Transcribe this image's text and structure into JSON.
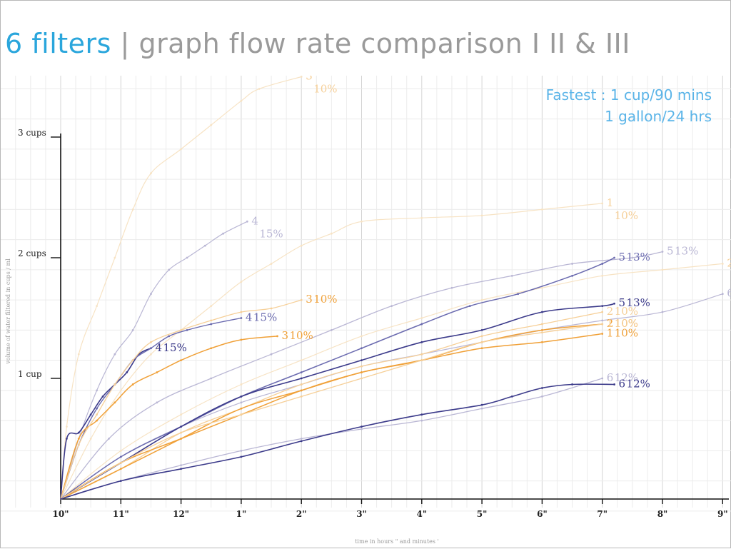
{
  "title": {
    "lead": "6 filters",
    "sep": "|",
    "rest": "graph flow rate comparison I II & III"
  },
  "annotation": {
    "line1": "Fastest : 1 cup/90 mins",
    "line2": "1 gallon/24 hrs"
  },
  "colors": {
    "dark_blue": "#3b3a8a",
    "blue": "#6a6aaf",
    "lavender": "#b9b6d4",
    "orange": "#f0a037",
    "peach": "#f6cf97",
    "pale": "#f7e3c4",
    "grid": "#dedede"
  },
  "chart_data": {
    "type": "line",
    "xlabel": "time in hours \" and minutes '",
    "ylabel": "volume of water filtered in cups / ml",
    "x_ticks": [
      {
        "h": 0,
        "label": "10\""
      },
      {
        "h": 1,
        "label": "11\""
      },
      {
        "h": 2,
        "label": "12\""
      },
      {
        "h": 3,
        "label": "1\""
      },
      {
        "h": 4,
        "label": "2\""
      },
      {
        "h": 5,
        "label": "3\""
      },
      {
        "h": 6,
        "label": "4\""
      },
      {
        "h": 7,
        "label": "5\""
      },
      {
        "h": 8,
        "label": "6\""
      },
      {
        "h": 9,
        "label": "7\""
      },
      {
        "h": 10,
        "label": "8\""
      },
      {
        "h": 11,
        "label": "9\""
      }
    ],
    "y_ticks": [
      {
        "v": 1,
        "label": "1 cup"
      },
      {
        "v": 2,
        "label": "2 cups"
      },
      {
        "v": 3,
        "label": "3 cups"
      }
    ],
    "xlim": [
      0,
      11.2
    ],
    "ylim": [
      0,
      3.5
    ],
    "grid": true,
    "series": [
      {
        "color": "pale",
        "width": 1.2,
        "points": [
          [
            0,
            0
          ],
          [
            0.1,
            0.6
          ],
          [
            0.3,
            1.2
          ],
          [
            0.6,
            1.6
          ],
          [
            0.9,
            2.0
          ],
          [
            1.2,
            2.4
          ],
          [
            1.5,
            2.7
          ],
          [
            2.0,
            2.9
          ],
          [
            2.5,
            3.1
          ],
          [
            3.0,
            3.3
          ],
          [
            3.3,
            3.4
          ],
          [
            4.0,
            3.5
          ]
        ],
        "label": [
          "3",
          "10%"
        ],
        "lc": "peach"
      },
      {
        "color": "lavender",
        "width": 1.2,
        "points": [
          [
            0,
            0
          ],
          [
            0.3,
            0.5
          ],
          [
            0.6,
            0.9
          ],
          [
            0.9,
            1.2
          ],
          [
            1.2,
            1.4
          ],
          [
            1.5,
            1.7
          ],
          [
            1.8,
            1.9
          ],
          [
            2.1,
            2.0
          ],
          [
            2.4,
            2.1
          ],
          [
            2.7,
            2.2
          ],
          [
            3.1,
            2.3
          ]
        ],
        "label": [
          "4",
          "15%"
        ],
        "lc": "lavender"
      },
      {
        "color": "pale",
        "width": 1.2,
        "points": [
          [
            0,
            0
          ],
          [
            0.5,
            0.5
          ],
          [
            1.0,
            0.9
          ],
          [
            1.5,
            1.2
          ],
          [
            2.0,
            1.4
          ],
          [
            2.5,
            1.6
          ],
          [
            3.0,
            1.8
          ],
          [
            3.5,
            1.95
          ],
          [
            4.0,
            2.1
          ],
          [
            4.5,
            2.2
          ],
          [
            5.0,
            2.3
          ],
          [
            6.0,
            2.33
          ],
          [
            7.0,
            2.35
          ],
          [
            8.0,
            2.4
          ],
          [
            9.0,
            2.45
          ]
        ],
        "label": [
          "1",
          "10%"
        ],
        "lc": "peach"
      },
      {
        "color": "lavender",
        "width": 1.3,
        "points": [
          [
            0,
            0
          ],
          [
            0.8,
            0.5
          ],
          [
            1.6,
            0.8
          ],
          [
            2.5,
            1.0
          ],
          [
            3.5,
            1.2
          ],
          [
            4.5,
            1.4
          ],
          [
            5.5,
            1.6
          ],
          [
            6.5,
            1.75
          ],
          [
            7.5,
            1.85
          ],
          [
            8.5,
            1.95
          ],
          [
            9.5,
            2.0
          ],
          [
            10.0,
            2.05
          ]
        ],
        "label": [
          "5",
          "13%"
        ],
        "lc": "lavender"
      },
      {
        "color": "pale",
        "width": 1.2,
        "points": [
          [
            0,
            0
          ],
          [
            1.0,
            0.4
          ],
          [
            2.0,
            0.7
          ],
          [
            3.0,
            0.95
          ],
          [
            4.0,
            1.15
          ],
          [
            5.0,
            1.35
          ],
          [
            6.0,
            1.5
          ],
          [
            7.0,
            1.65
          ],
          [
            8.0,
            1.75
          ],
          [
            9.0,
            1.85
          ],
          [
            10.0,
            1.9
          ],
          [
            11.0,
            1.95
          ]
        ],
        "label": [
          "2",
          "10%"
        ],
        "lc": "peach"
      },
      {
        "color": "lavender",
        "width": 1.2,
        "points": [
          [
            0,
            0
          ],
          [
            1.0,
            0.35
          ],
          [
            2.0,
            0.6
          ],
          [
            3.0,
            0.8
          ],
          [
            4.0,
            0.95
          ],
          [
            5.0,
            1.1
          ],
          [
            6.0,
            1.2
          ],
          [
            7.0,
            1.3
          ],
          [
            8.0,
            1.4
          ],
          [
            9.0,
            1.48
          ],
          [
            10.0,
            1.55
          ],
          [
            11.0,
            1.7
          ]
        ],
        "label": [
          "6",
          "12%"
        ],
        "lc": "lavender"
      },
      {
        "color": "dark_blue",
        "width": 1.6,
        "points": [
          [
            0,
            0
          ],
          [
            0.1,
            0.5
          ],
          [
            0.3,
            0.55
          ],
          [
            0.5,
            0.7
          ],
          [
            0.7,
            0.85
          ],
          [
            0.9,
            0.95
          ],
          [
            1.1,
            1.05
          ],
          [
            1.3,
            1.2
          ],
          [
            1.5,
            1.25
          ]
        ],
        "label": [
          "4",
          "15%"
        ],
        "lc": "dark_blue"
      },
      {
        "color": "blue",
        "width": 1.4,
        "points": [
          [
            0,
            0
          ],
          [
            0.3,
            0.45
          ],
          [
            0.6,
            0.75
          ],
          [
            0.9,
            0.95
          ],
          [
            1.2,
            1.15
          ],
          [
            1.5,
            1.25
          ],
          [
            1.8,
            1.35
          ],
          [
            2.1,
            1.4
          ],
          [
            2.5,
            1.45
          ],
          [
            3.0,
            1.5
          ]
        ],
        "label": [
          "4",
          "15%"
        ],
        "lc": "blue"
      },
      {
        "color": "orange",
        "width": 1.5,
        "points": [
          [
            0,
            0
          ],
          [
            0.3,
            0.5
          ],
          [
            0.6,
            0.65
          ],
          [
            0.9,
            0.8
          ],
          [
            1.2,
            0.95
          ],
          [
            1.6,
            1.05
          ],
          [
            2.0,
            1.15
          ],
          [
            2.5,
            1.25
          ],
          [
            3.0,
            1.32
          ],
          [
            3.6,
            1.35
          ]
        ],
        "label": [
          "3",
          "10%"
        ],
        "lc": "orange"
      },
      {
        "color": "peach",
        "width": 1.3,
        "points": [
          [
            0,
            0
          ],
          [
            0.3,
            0.45
          ],
          [
            0.6,
            0.7
          ],
          [
            0.9,
            0.95
          ],
          [
            1.2,
            1.15
          ],
          [
            1.5,
            1.3
          ],
          [
            2.0,
            1.4
          ],
          [
            2.5,
            1.48
          ],
          [
            3.0,
            1.55
          ],
          [
            3.5,
            1.58
          ],
          [
            4.0,
            1.65
          ]
        ],
        "label": [
          "3",
          "10%"
        ],
        "lc": "orange"
      },
      {
        "color": "blue",
        "width": 1.5,
        "points": [
          [
            0,
            0
          ],
          [
            1.0,
            0.35
          ],
          [
            2.0,
            0.6
          ],
          [
            3.0,
            0.85
          ],
          [
            4.0,
            1.05
          ],
          [
            5.0,
            1.25
          ],
          [
            6.0,
            1.45
          ],
          [
            6.8,
            1.6
          ],
          [
            7.6,
            1.7
          ],
          [
            8.5,
            1.85
          ],
          [
            9.0,
            1.95
          ],
          [
            9.2,
            2.0
          ]
        ],
        "label": [
          "5",
          "13%"
        ],
        "lc": "blue"
      },
      {
        "color": "dark_blue",
        "width": 1.6,
        "points": [
          [
            0,
            0
          ],
          [
            1.0,
            0.3
          ],
          [
            2.0,
            0.6
          ],
          [
            3.0,
            0.85
          ],
          [
            4.0,
            1.0
          ],
          [
            5.0,
            1.15
          ],
          [
            6.0,
            1.3
          ],
          [
            7.0,
            1.4
          ],
          [
            8.0,
            1.55
          ],
          [
            9.0,
            1.6
          ],
          [
            9.2,
            1.62
          ]
        ],
        "label": [
          "5",
          "13%"
        ],
        "lc": "dark_blue"
      },
      {
        "color": "peach",
        "width": 1.3,
        "points": [
          [
            0,
            0
          ],
          [
            1.0,
            0.25
          ],
          [
            2.0,
            0.55
          ],
          [
            3.0,
            0.75
          ],
          [
            4.0,
            0.95
          ],
          [
            5.0,
            1.1
          ],
          [
            6.0,
            1.2
          ],
          [
            7.0,
            1.35
          ],
          [
            8.0,
            1.45
          ],
          [
            9.0,
            1.55
          ]
        ],
        "label": [
          "2",
          "10%"
        ],
        "lc": "peach"
      },
      {
        "color": "orange",
        "width": 1.5,
        "points": [
          [
            0,
            0
          ],
          [
            1.0,
            0.3
          ],
          [
            2.0,
            0.5
          ],
          [
            3.0,
            0.7
          ],
          [
            4.0,
            0.9
          ],
          [
            5.0,
            1.05
          ],
          [
            6.0,
            1.15
          ],
          [
            7.0,
            1.3
          ],
          [
            8.0,
            1.4
          ],
          [
            9.0,
            1.45
          ]
        ],
        "label": [
          "2",
          "10%"
        ],
        "lc": "orange"
      },
      {
        "color": "orange",
        "width": 1.5,
        "points": [
          [
            0,
            0
          ],
          [
            1.0,
            0.25
          ],
          [
            2.0,
            0.5
          ],
          [
            3.0,
            0.75
          ],
          [
            4.0,
            0.9
          ],
          [
            5.0,
            1.05
          ],
          [
            6.0,
            1.15
          ],
          [
            7.0,
            1.25
          ],
          [
            8.0,
            1.3
          ],
          [
            9.0,
            1.37
          ]
        ],
        "label": [
          "1",
          "10%"
        ],
        "lc": "orange"
      },
      {
        "color": "peach",
        "width": 1.3,
        "points": [
          [
            0,
            0
          ],
          [
            1.0,
            0.3
          ],
          [
            2.0,
            0.55
          ],
          [
            3.0,
            0.7
          ],
          [
            4.0,
            0.85
          ],
          [
            5.0,
            1.0
          ],
          [
            6.0,
            1.15
          ],
          [
            7.0,
            1.3
          ],
          [
            8.0,
            1.38
          ],
          [
            9.0,
            1.45
          ]
        ],
        "label": [
          "1",
          "10%"
        ],
        "lc": "peach"
      },
      {
        "color": "lavender",
        "width": 1.3,
        "points": [
          [
            0,
            0
          ],
          [
            1.0,
            0.15
          ],
          [
            2.0,
            0.28
          ],
          [
            3.0,
            0.4
          ],
          [
            4.0,
            0.5
          ],
          [
            5.0,
            0.58
          ],
          [
            6.0,
            0.65
          ],
          [
            7.0,
            0.75
          ],
          [
            8.0,
            0.85
          ],
          [
            9.0,
            1.0
          ]
        ],
        "label": [
          "6",
          "12%"
        ],
        "lc": "lavender"
      },
      {
        "color": "dark_blue",
        "width": 1.6,
        "points": [
          [
            0,
            0
          ],
          [
            1.0,
            0.15
          ],
          [
            2.0,
            0.25
          ],
          [
            3.0,
            0.35
          ],
          [
            4.0,
            0.48
          ],
          [
            5.0,
            0.6
          ],
          [
            6.0,
            0.7
          ],
          [
            7.0,
            0.78
          ],
          [
            7.5,
            0.85
          ],
          [
            8.0,
            0.92
          ],
          [
            8.5,
            0.95
          ],
          [
            9.2,
            0.95
          ]
        ],
        "label": [
          "6",
          "12%"
        ],
        "lc": "dark_blue"
      }
    ]
  }
}
